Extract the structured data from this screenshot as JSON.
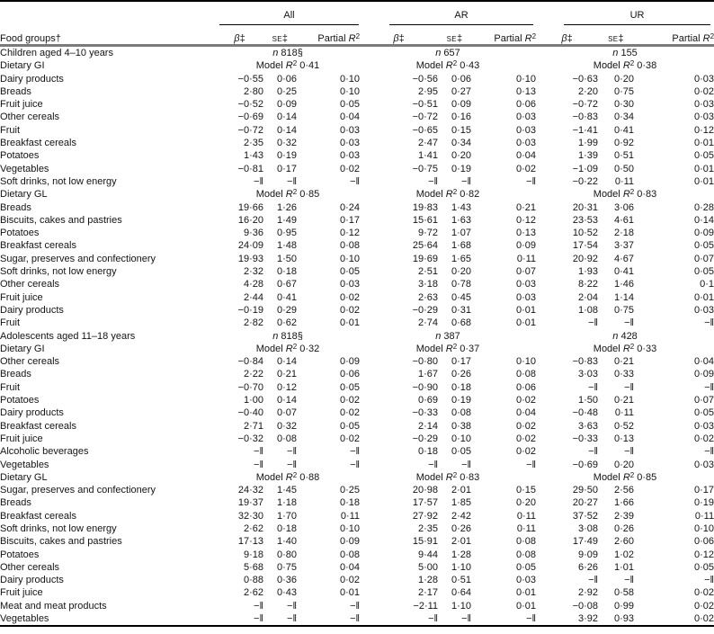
{
  "table": {
    "header": {
      "food_groups_label": "Food groups†",
      "groups": [
        "All",
        "AR",
        "UR"
      ],
      "col_beta": "β‡",
      "col_se": "se‡",
      "col_partial": "Partial R²"
    },
    "missing_marker": "−‖",
    "sections": [
      {
        "title": "Children aged 4–10 years",
        "n_values": [
          "n 818§",
          "n 657",
          "n 155"
        ],
        "subsections": [
          {
            "title": "Dietary GI",
            "model_r2": [
              "Model R² 0·41",
              "Model R² 0·43",
              "Model R² 0·38"
            ],
            "rows": [
              {
                "label": "Dairy products",
                "values": [
                  "−0·55",
                  "0·06",
                  "0·10",
                  "−0·56",
                  "0·06",
                  "0·10",
                  "−0·63",
                  "0·20",
                  "0·03"
                ]
              },
              {
                "label": "Breads",
                "values": [
                  "2·80",
                  "0·25",
                  "0·10",
                  "2·95",
                  "0·27",
                  "0·13",
                  "2·20",
                  "0·75",
                  "0·02"
                ]
              },
              {
                "label": "Fruit juice",
                "values": [
                  "−0·52",
                  "0·09",
                  "0·05",
                  "−0·51",
                  "0·09",
                  "0·06",
                  "−0·72",
                  "0·30",
                  "0·03"
                ]
              },
              {
                "label": "Other cereals",
                "values": [
                  "−0·69",
                  "0·14",
                  "0·04",
                  "−0·72",
                  "0·16",
                  "0·03",
                  "−0·83",
                  "0·34",
                  "0·03"
                ]
              },
              {
                "label": "Fruit",
                "values": [
                  "−0·72",
                  "0·14",
                  "0·03",
                  "−0·65",
                  "0·15",
                  "0·03",
                  "−1·41",
                  "0·41",
                  "0·12"
                ]
              },
              {
                "label": "Breakfast cereals",
                "values": [
                  "2·35",
                  "0·32",
                  "0·03",
                  "2·47",
                  "0·34",
                  "0·03",
                  "1·99",
                  "0·92",
                  "0·01"
                ]
              },
              {
                "label": "Potatoes",
                "values": [
                  "1·43",
                  "0·19",
                  "0·03",
                  "1·41",
                  "0·20",
                  "0·04",
                  "1·39",
                  "0·51",
                  "0·05"
                ]
              },
              {
                "label": "Vegetables",
                "values": [
                  "−0·81",
                  "0·17",
                  "0·02",
                  "−0·75",
                  "0·19",
                  "0·02",
                  "−1·09",
                  "0·50",
                  "0·01"
                ]
              },
              {
                "label": "Soft drinks, not low energy",
                "values": [
                  "−‖",
                  "−‖",
                  "−‖",
                  "−‖",
                  "−‖",
                  "−‖",
                  "−0·22",
                  "0·11",
                  "0·01"
                ]
              }
            ]
          },
          {
            "title": "Dietary GL",
            "model_r2": [
              "Model R² 0·85",
              "Model R² 0·82",
              "Model R² 0·83"
            ],
            "rows": [
              {
                "label": "Breads",
                "values": [
                  "19·66",
                  "1·26",
                  "0·24",
                  "19·83",
                  "1·43",
                  "0·21",
                  "20·31",
                  "3·06",
                  "0·28"
                ]
              },
              {
                "label": "Biscuits, cakes and pastries",
                "values": [
                  "16·20",
                  "1·49",
                  "0·17",
                  "15·61",
                  "1·63",
                  "0·12",
                  "23·53",
                  "4·61",
                  "0·14"
                ]
              },
              {
                "label": "Potatoes",
                "values": [
                  "9·36",
                  "0·95",
                  "0·12",
                  "9·72",
                  "1·07",
                  "0·13",
                  "10·52",
                  "2·18",
                  "0·09"
                ]
              },
              {
                "label": "Breakfast cereals",
                "values": [
                  "24·09",
                  "1·48",
                  "0·08",
                  "25·64",
                  "1·68",
                  "0·09",
                  "17·54",
                  "3·37",
                  "0·05"
                ]
              },
              {
                "label": "Sugar, preserves and confectionery",
                "values": [
                  "19·93",
                  "1·50",
                  "0·10",
                  "19·69",
                  "1·65",
                  "0·11",
                  "20·92",
                  "4·67",
                  "0·07"
                ]
              },
              {
                "label": "Soft drinks, not low energy",
                "values": [
                  "2·32",
                  "0·18",
                  "0·05",
                  "2·51",
                  "0·20",
                  "0·07",
                  "1·93",
                  "0·41",
                  "0·05"
                ]
              },
              {
                "label": "Other cereals",
                "values": [
                  "4·28",
                  "0·67",
                  "0·03",
                  "3·18",
                  "0·78",
                  "0·03",
                  "8·22",
                  "1·46",
                  "0·1"
                ]
              },
              {
                "label": "Fruit juice",
                "values": [
                  "2·44",
                  "0·41",
                  "0·02",
                  "2·63",
                  "0·45",
                  "0·03",
                  "2·04",
                  "1·14",
                  "0·01"
                ]
              },
              {
                "label": "Dairy products",
                "values": [
                  "−0·19",
                  "0·29",
                  "0·02",
                  "−0·29",
                  "0·31",
                  "0·01",
                  "1·08",
                  "0·75",
                  "0·03"
                ]
              },
              {
                "label": "Fruit",
                "values": [
                  "2·82",
                  "0·62",
                  "0·01",
                  "2·74",
                  "0·68",
                  "0·01",
                  "−‖",
                  "−‖",
                  "−‖"
                ]
              }
            ]
          }
        ]
      },
      {
        "title": "Adolescents aged 11–18 years",
        "n_values": [
          "n 818§",
          "n 387",
          "n 428"
        ],
        "subsections": [
          {
            "title": "Dietary GI",
            "model_r2": [
              "Model R² 0·32",
              "Model R² 0·37",
              "Model R² 0·33"
            ],
            "rows": [
              {
                "label": "Other cereals",
                "values": [
                  "−0·84",
                  "0·14",
                  "0·09",
                  "−0·80",
                  "0·17",
                  "0·10",
                  "−0·83",
                  "0·21",
                  "0·04"
                ]
              },
              {
                "label": "Breads",
                "values": [
                  "2·22",
                  "0·21",
                  "0·06",
                  "1·67",
                  "0·26",
                  "0·08",
                  "3·03",
                  "0·33",
                  "0·09"
                ]
              },
              {
                "label": "Fruit",
                "values": [
                  "−0·70",
                  "0·12",
                  "0·05",
                  "−0·90",
                  "0·18",
                  "0·06",
                  "−‖",
                  "−‖",
                  "−‖"
                ]
              },
              {
                "label": "Potatoes",
                "values": [
                  "1·00",
                  "0·14",
                  "0·02",
                  "0·69",
                  "0·19",
                  "0·02",
                  "1·50",
                  "0·21",
                  "0·07"
                ]
              },
              {
                "label": "Dairy products",
                "values": [
                  "−0·40",
                  "0·07",
                  "0·02",
                  "−0·33",
                  "0·08",
                  "0·04",
                  "−0·48",
                  "0·11",
                  "0·05"
                ]
              },
              {
                "label": "Breakfast cereals",
                "values": [
                  "2·71",
                  "0·32",
                  "0·05",
                  "2·14",
                  "0·38",
                  "0·02",
                  "3·63",
                  "0·52",
                  "0·03"
                ]
              },
              {
                "label": "Fruit juice",
                "values": [
                  "−0·32",
                  "0·08",
                  "0·02",
                  "−0·29",
                  "0·10",
                  "0·02",
                  "−0·33",
                  "0·13",
                  "0·02"
                ]
              },
              {
                "label": "Alcoholic beverages",
                "values": [
                  "−‖",
                  "−‖",
                  "−‖",
                  "0·18",
                  "0·05",
                  "0·02",
                  "−‖",
                  "−‖",
                  "−‖"
                ]
              },
              {
                "label": "Vegetables",
                "values": [
                  "−‖",
                  "−‖",
                  "−‖",
                  "−‖",
                  "−‖",
                  "−‖",
                  "−0·69",
                  "0·20",
                  "0·03"
                ]
              }
            ]
          },
          {
            "title": "Dietary GL",
            "model_r2": [
              "Model R² 0·88",
              "Model R² 0·83",
              "Model R² 0·85"
            ],
            "rows": [
              {
                "label": "Sugar, preserves and confectionery",
                "values": [
                  "24·32",
                  "1·45",
                  "0·25",
                  "20·98",
                  "2·01",
                  "0·15",
                  "29·50",
                  "2·56",
                  "0·17"
                ]
              },
              {
                "label": "Breads",
                "values": [
                  "19·37",
                  "1·18",
                  "0·18",
                  "17·57",
                  "1·85",
                  "0·20",
                  "20·27",
                  "1·66",
                  "0·19"
                ]
              },
              {
                "label": "Breakfast cereals",
                "values": [
                  "32·30",
                  "1·70",
                  "0·11",
                  "27·92",
                  "2·42",
                  "0·11",
                  "37·52",
                  "2·39",
                  "0·11"
                ]
              },
              {
                "label": "Soft drinks, not low energy",
                "values": [
                  "2·62",
                  "0·18",
                  "0·10",
                  "2·35",
                  "0·26",
                  "0·11",
                  "3·08",
                  "0·26",
                  "0·10"
                ]
              },
              {
                "label": "Biscuits, cakes and pastries",
                "values": [
                  "17·13",
                  "1·40",
                  "0·09",
                  "15·91",
                  "2·01",
                  "0·08",
                  "17·49",
                  "2·60",
                  "0·06"
                ]
              },
              {
                "label": "Potatoes",
                "values": [
                  "9·18",
                  "0·80",
                  "0·08",
                  "9·44",
                  "1·28",
                  "0·08",
                  "9·09",
                  "1·02",
                  "0·12"
                ]
              },
              {
                "label": "Other cereals",
                "values": [
                  "5·68",
                  "0·75",
                  "0·04",
                  "5·00",
                  "1·10",
                  "0·05",
                  "6·26",
                  "1·01",
                  "0·05"
                ]
              },
              {
                "label": "Dairy products",
                "values": [
                  "0·88",
                  "0·36",
                  "0·02",
                  "1·28",
                  "0·51",
                  "0·03",
                  "−‖",
                  "−‖",
                  "−‖"
                ]
              },
              {
                "label": "Fruit juice",
                "values": [
                  "2·62",
                  "0·43",
                  "0·01",
                  "2·17",
                  "0·64",
                  "0·01",
                  "2·92",
                  "0·58",
                  "0·02"
                ]
              },
              {
                "label": "Meat and meat products",
                "values": [
                  "−‖",
                  "−‖",
                  "−‖",
                  "−2·11",
                  "1·10",
                  "0·01",
                  "−0·08",
                  "0·99",
                  "0·02"
                ]
              },
              {
                "label": "Vegetables",
                "values": [
                  "−‖",
                  "−‖",
                  "−‖",
                  "−‖",
                  "−‖",
                  "−‖",
                  "3·92",
                  "0·93",
                  "0·02"
                ]
              }
            ]
          }
        ]
      }
    ]
  }
}
